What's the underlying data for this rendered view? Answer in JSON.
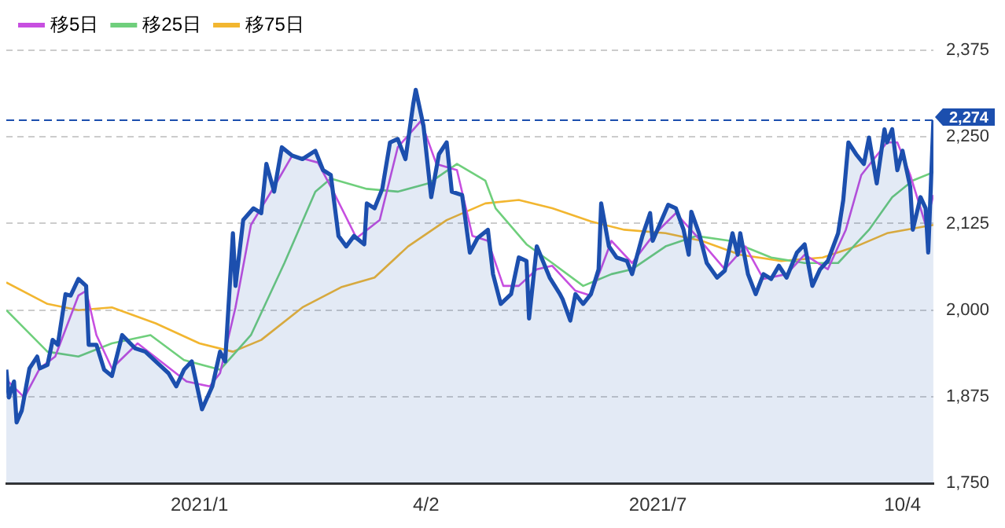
{
  "chart_data": {
    "type": "line",
    "legend": "top left",
    "grid": "y",
    "marker": "none",
    "line_style": "solid",
    "xlim": [
      "2020-10-21",
      "2021-10-16"
    ],
    "xticks": [
      {
        "value": "2021-01-04",
        "label": "2021/1"
      },
      {
        "value": "2021-04-02",
        "label": "4/2"
      },
      {
        "value": "2021-07-01",
        "label": "2021/7"
      },
      {
        "value": "2021-10-04",
        "label": "10/4"
      }
    ],
    "ylim": [
      1750,
      2375
    ],
    "yticks": [
      {
        "value": 1750,
        "label": "1,750"
      },
      {
        "value": 1875,
        "label": "1,875"
      },
      {
        "value": 2000,
        "label": "2,000"
      },
      {
        "value": 2125,
        "label": "2,125"
      },
      {
        "value": 2250,
        "label": "2,250"
      },
      {
        "value": 2375,
        "label": "2,375"
      }
    ],
    "ref_lines": [
      {
        "axis": "y",
        "value": 2274,
        "label": "2,274",
        "color": "#1c4fae",
        "line_style": "dashed"
      }
    ],
    "series": [
      {
        "type": "area",
        "color": "#1c4fae",
        "x": [
          "2020-10-21",
          "2020-10-22",
          "2020-10-24",
          "2020-10-25",
          "2020-10-27",
          "2020-10-30",
          "2020-11-02",
          "2020-11-03",
          "2020-11-06",
          "2020-11-08",
          "2020-11-10",
          "2020-11-13",
          "2020-11-15",
          "2020-11-18",
          "2020-11-21",
          "2020-11-22",
          "2020-11-25",
          "2020-11-28",
          "2020-12-01",
          "2020-12-05",
          "2020-12-10",
          "2020-12-14",
          "2020-12-18",
          "2020-12-23",
          "2020-12-26",
          "2020-12-29",
          "2021-01-01",
          "2021-01-05",
          "2021-01-09",
          "2021-01-12",
          "2021-01-14",
          "2021-01-17",
          "2021-01-18",
          "2021-01-21",
          "2021-01-25",
          "2021-01-28",
          "2021-01-30",
          "2021-02-02",
          "2021-02-05",
          "2021-02-09",
          "2021-02-13",
          "2021-02-18",
          "2021-02-21",
          "2021-02-24",
          "2021-02-27",
          "2021-03-02",
          "2021-03-05",
          "2021-03-09",
          "2021-03-10",
          "2021-03-13",
          "2021-03-16",
          "2021-03-19",
          "2021-03-22",
          "2021-03-25",
          "2021-03-28",
          "2021-03-29",
          "2021-04-01",
          "2021-04-04",
          "2021-04-07",
          "2021-04-10",
          "2021-04-12",
          "2021-04-16",
          "2021-04-19",
          "2021-04-22",
          "2021-04-26",
          "2021-04-28",
          "2021-05-01",
          "2021-05-05",
          "2021-05-08",
          "2021-05-11",
          "2021-05-12",
          "2021-05-15",
          "2021-05-20",
          "2021-05-24",
          "2021-05-25",
          "2021-05-28",
          "2021-05-30",
          "2021-06-02",
          "2021-06-05",
          "2021-06-08",
          "2021-06-09",
          "2021-06-12",
          "2021-06-15",
          "2021-06-19",
          "2021-06-21",
          "2021-06-25",
          "2021-06-28",
          "2021-06-29",
          "2021-07-05",
          "2021-07-08",
          "2021-07-11",
          "2021-07-13",
          "2021-07-14",
          "2021-07-17",
          "2021-07-20",
          "2021-07-24",
          "2021-07-27",
          "2021-07-30",
          "2021-08-01",
          "2021-08-02",
          "2021-08-05",
          "2021-08-08",
          "2021-08-11",
          "2021-08-14",
          "2021-08-17",
          "2021-08-20",
          "2021-08-24",
          "2021-08-27",
          "2021-08-30",
          "2021-09-02",
          "2021-09-05",
          "2021-09-09",
          "2021-09-11",
          "2021-09-13",
          "2021-09-16",
          "2021-09-19",
          "2021-09-21",
          "2021-09-24",
          "2021-09-27",
          "2021-09-28",
          "2021-09-30",
          "2021-10-02",
          "2021-10-04",
          "2021-10-07",
          "2021-10-08",
          "2021-10-11",
          "2021-10-13",
          "2021-10-14",
          "2021-10-16"
        ],
        "values": [
          1914,
          1874,
          1897,
          1838,
          1855,
          1916,
          1933,
          1916,
          1921,
          1957,
          1950,
          2023,
          2021,
          2045,
          2035,
          1950,
          1950,
          1914,
          1905,
          1964,
          1945,
          1940,
          1926,
          1909,
          1890,
          1914,
          1926,
          1857,
          1890,
          1940,
          1926,
          2111,
          2035,
          2130,
          2147,
          2140,
          2211,
          2171,
          2235,
          2223,
          2218,
          2230,
          2202,
          2195,
          2107,
          2092,
          2107,
          2095,
          2154,
          2147,
          2175,
          2242,
          2247,
          2218,
          2297,
          2318,
          2266,
          2163,
          2225,
          2242,
          2171,
          2166,
          2083,
          2104,
          2116,
          2052,
          2009,
          2023,
          2076,
          2071,
          1988,
          2092,
          2047,
          2023,
          2016,
          1985,
          2023,
          2009,
          2023,
          2059,
          2154,
          2092,
          2076,
          2071,
          2052,
          2107,
          2140,
          2100,
          2152,
          2147,
          2116,
          2080,
          2142,
          2111,
          2068,
          2047,
          2057,
          2111,
          2080,
          2111,
          2052,
          2023,
          2052,
          2045,
          2064,
          2047,
          2083,
          2095,
          2035,
          2059,
          2071,
          2111,
          2159,
          2242,
          2225,
          2211,
          2249,
          2183,
          2261,
          2242,
          2261,
          2202,
          2230,
          2178,
          2116,
          2163,
          2147,
          2083,
          2274
        ]
      },
      {
        "type": "line",
        "name": "移5日",
        "color": "#c74fe0",
        "x": [
          "2020-10-21",
          "2020-10-28",
          "2020-11-03",
          "2020-11-09",
          "2020-11-18",
          "2020-11-21",
          "2020-11-25",
          "2020-12-01",
          "2020-12-11",
          "2020-12-20",
          "2020-12-30",
          "2021-01-08",
          "2021-01-12",
          "2021-01-18",
          "2021-01-24",
          "2021-02-02",
          "2021-02-09",
          "2021-02-19",
          "2021-02-25",
          "2021-03-06",
          "2021-03-15",
          "2021-03-22",
          "2021-03-31",
          "2021-04-06",
          "2021-04-14",
          "2021-04-20",
          "2021-04-26",
          "2021-05-02",
          "2021-05-08",
          "2021-05-15",
          "2021-05-21",
          "2021-05-30",
          "2021-06-05",
          "2021-06-13",
          "2021-06-21",
          "2021-06-29",
          "2021-07-08",
          "2021-07-16",
          "2021-07-27",
          "2021-08-04",
          "2021-08-11",
          "2021-08-20",
          "2021-08-27",
          "2021-09-05",
          "2021-09-12",
          "2021-09-18",
          "2021-09-28",
          "2021-10-02",
          "2021-10-07",
          "2021-10-13",
          "2021-10-16"
        ],
        "values": [
          1900,
          1874,
          1916,
          1933,
          2021,
          2028,
          1964,
          1916,
          1952,
          1926,
          1897,
          1890,
          1909,
          2004,
          2123,
          2178,
          2223,
          2213,
          2171,
          2104,
          2130,
          2235,
          2273,
          2211,
          2202,
          2107,
          2100,
          2035,
          2035,
          2059,
          2064,
          2028,
          2021,
          2100,
          2068,
          2107,
          2140,
          2107,
          2059,
          2092,
          2045,
          2052,
          2080,
          2059,
          2116,
          2195,
          2242,
          2242,
          2195,
          2123,
          2166
        ]
      },
      {
        "type": "line",
        "name": "移25日",
        "color": "#6fcf7c",
        "x": [
          "2020-10-21",
          "2020-11-06",
          "2020-11-18",
          "2020-12-01",
          "2020-12-16",
          "2020-12-29",
          "2021-01-12",
          "2021-01-24",
          "2021-02-06",
          "2021-02-18",
          "2021-02-24",
          "2021-03-10",
          "2021-03-22",
          "2021-04-03",
          "2021-04-14",
          "2021-04-25",
          "2021-04-29",
          "2021-05-11",
          "2021-05-21",
          "2021-06-02",
          "2021-06-13",
          "2021-06-21",
          "2021-07-04",
          "2021-07-16",
          "2021-07-29",
          "2021-08-14",
          "2021-08-27",
          "2021-09-09",
          "2021-09-21",
          "2021-09-30",
          "2021-10-08",
          "2021-10-16"
        ],
        "values": [
          2000,
          1940,
          1933,
          1952,
          1964,
          1928,
          1914,
          1964,
          2068,
          2171,
          2190,
          2175,
          2171,
          2183,
          2211,
          2187,
          2147,
          2095,
          2068,
          2035,
          2052,
          2059,
          2092,
          2107,
          2100,
          2076,
          2068,
          2068,
          2116,
          2163,
          2187,
          2199
        ]
      },
      {
        "type": "line",
        "name": "移75日",
        "color": "#f2b630",
        "x": [
          "2020-10-21",
          "2020-11-06",
          "2020-11-18",
          "2020-12-01",
          "2020-12-18",
          "2021-01-04",
          "2021-01-17",
          "2021-01-28",
          "2021-02-13",
          "2021-02-28",
          "2021-03-13",
          "2021-03-26",
          "2021-04-10",
          "2021-04-25",
          "2021-05-08",
          "2021-05-21",
          "2021-06-05",
          "2021-06-18",
          "2021-07-04",
          "2021-07-18",
          "2021-08-02",
          "2021-08-18",
          "2021-09-03",
          "2021-09-16",
          "2021-09-28",
          "2021-10-16"
        ],
        "values": [
          2040,
          2009,
          2000,
          2004,
          1981,
          1952,
          1940,
          1957,
          2004,
          2033,
          2047,
          2092,
          2130,
          2154,
          2159,
          2147,
          2128,
          2116,
          2111,
          2100,
          2080,
          2071,
          2076,
          2092,
          2111,
          2123
        ]
      }
    ]
  }
}
